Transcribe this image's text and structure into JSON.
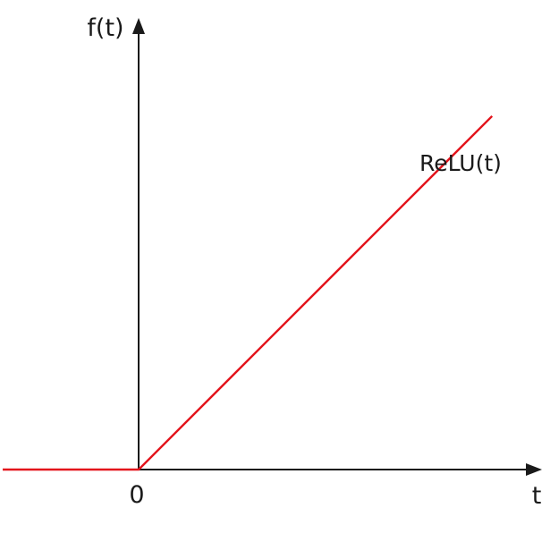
{
  "chart_data": {
    "type": "line",
    "title": "",
    "xlabel": "t",
    "ylabel": "f(t)",
    "origin_label": "0",
    "x_range": [
      -1.0,
      2.6
    ],
    "y_range": [
      0.0,
      3.3
    ],
    "grid": false,
    "series": [
      {
        "name": "ReLU(t)",
        "color": "#e3131b",
        "x": [
          -1.0,
          0.0,
          2.6
        ],
        "y": [
          0.0,
          0.0,
          2.6
        ]
      }
    ]
  }
}
